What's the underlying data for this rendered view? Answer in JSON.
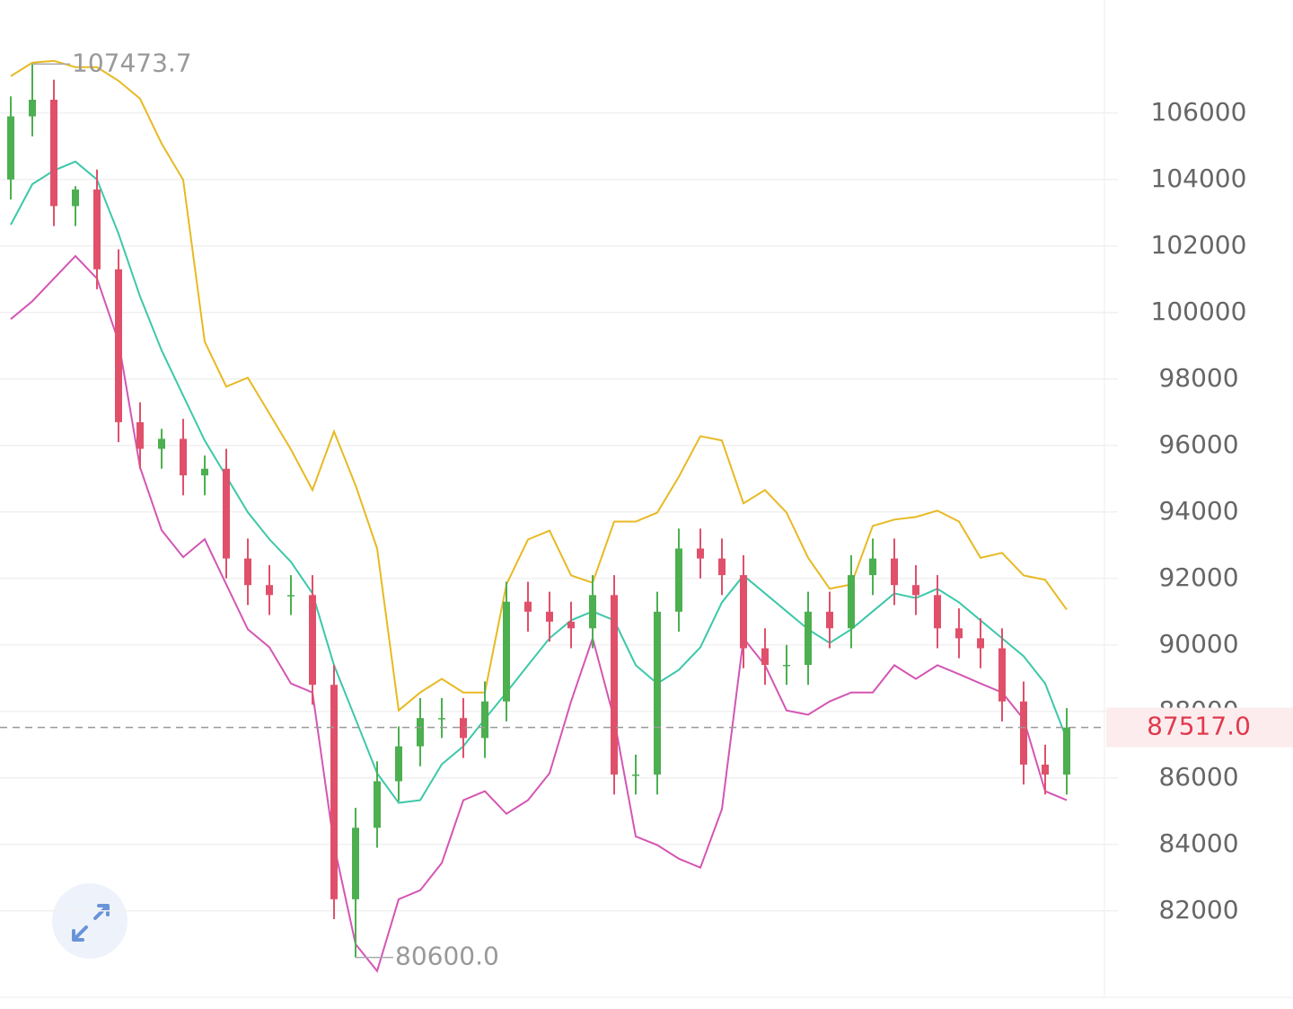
{
  "chart_data": {
    "type": "candlestick",
    "open": [
      104000,
      105900,
      106400,
      103200,
      103700,
      101300,
      96700,
      95900,
      96200,
      95100,
      95300,
      92600,
      91800,
      91500,
      91500,
      88800,
      82350,
      84500,
      85900,
      86950,
      87800,
      87800,
      87200,
      88300,
      91300,
      91000,
      90700,
      90500,
      91500,
      86100,
      86100,
      91000,
      92900,
      92600,
      92100,
      89900,
      89400,
      89400,
      91000,
      90500,
      92100,
      92600,
      91800,
      91500,
      90500,
      90200,
      89900,
      88300,
      86400,
      86100
    ],
    "high": [
      106500,
      107473.7,
      107000,
      103800,
      104300,
      101900,
      97300,
      96500,
      96800,
      95700,
      95900,
      93200,
      92400,
      92100,
      92100,
      89400,
      85100,
      86500,
      87550,
      88400,
      88400,
      88400,
      88900,
      91900,
      91900,
      91600,
      91300,
      92100,
      92100,
      86700,
      91600,
      93500,
      93500,
      93200,
      92700,
      90500,
      90000,
      91600,
      91600,
      92700,
      93200,
      93200,
      92400,
      92100,
      91100,
      90800,
      90500,
      88900,
      87000,
      88100
    ],
    "low": [
      103400,
      105300,
      102600,
      102600,
      100700,
      96100,
      95300,
      95300,
      94500,
      94500,
      92000,
      91200,
      90900,
      90900,
      88200,
      81750,
      80600,
      83900,
      85300,
      86350,
      87200,
      86600,
      86600,
      87700,
      90400,
      90100,
      89900,
      89900,
      85500,
      85500,
      85500,
      90400,
      92000,
      91500,
      89300,
      88800,
      88800,
      88800,
      89900,
      89900,
      91500,
      91200,
      90900,
      89900,
      89600,
      89300,
      87700,
      85800,
      85500,
      85500
    ],
    "close": [
      105900,
      106400,
      103200,
      103700,
      101300,
      96700,
      95900,
      96200,
      95100,
      95300,
      92600,
      91800,
      91500,
      91500,
      88800,
      82350,
      84500,
      85900,
      86950,
      87800,
      87800,
      87200,
      88300,
      91300,
      91000,
      90700,
      90500,
      91500,
      86100,
      86100,
      91000,
      92900,
      92600,
      92100,
      89900,
      89400,
      89400,
      91000,
      90500,
      92100,
      92600,
      91800,
      91500,
      90500,
      90200,
      89900,
      88300,
      86400,
      86100,
      87517
    ],
    "up_color": "#4caf50",
    "down_color": "#e0506a",
    "series": [
      {
        "color": "#e8b923",
        "values": [
          107110,
          107515,
          107570,
          107380,
          107380,
          106970,
          106430,
          105080,
          103990,
          99120,
          97770,
          98040,
          96960,
          95880,
          94660,
          96420,
          94800,
          92900,
          88030,
          88570,
          88980,
          88570,
          88570,
          91820,
          93170,
          93440,
          92090,
          91870,
          93710,
          93710,
          93980,
          95060,
          96280,
          96150,
          94260,
          94660,
          93980,
          92620,
          91690,
          91820,
          93580,
          93770,
          93850,
          94040,
          93710,
          92620,
          92770,
          92090,
          91960,
          91060
        ]
      },
      {
        "color": "#3cc8a8",
        "values": [
          102640,
          103860,
          104270,
          104540,
          104000,
          102370,
          100480,
          98860,
          97500,
          96150,
          95070,
          93990,
          93180,
          92500,
          91550,
          89390,
          87770,
          86140,
          85250,
          85330,
          86410,
          86950,
          87770,
          88570,
          89390,
          90200,
          90740,
          91010,
          90740,
          89390,
          88840,
          89250,
          89930,
          91280,
          92090,
          91550,
          91010,
          90470,
          90060,
          90470,
          91010,
          91550,
          91410,
          91690,
          91280,
          90740,
          90200,
          89660,
          88840,
          87170
        ]
      },
      {
        "color": "#d455b4",
        "values": [
          99800,
          100340,
          101020,
          101700,
          101020,
          99130,
          95340,
          93450,
          92640,
          93180,
          91820,
          90470,
          89930,
          88840,
          88570,
          83980,
          81000,
          80190,
          82350,
          82620,
          83440,
          85330,
          85600,
          84920,
          85330,
          86140,
          88300,
          90200,
          87770,
          84240,
          83980,
          83570,
          83300,
          85060,
          90200,
          89390,
          88030,
          87900,
          88300,
          88570,
          88570,
          89390,
          88980,
          89390,
          89120,
          88840,
          88570,
          87770,
          85600,
          85330
        ]
      }
    ],
    "ylim": [
      79400,
      109400
    ],
    "yticks": [
      82000,
      84000,
      86000,
      88000,
      90000,
      92000,
      94000,
      96000,
      98000,
      100000,
      102000,
      104000,
      106000
    ],
    "grid": true,
    "max_label": 107473.7,
    "min_label": {
      "value": 80600,
      "label": "80600.0"
    },
    "last_price": {
      "value": 87517,
      "label": "87517.0",
      "color": "#e03a4e"
    }
  }
}
